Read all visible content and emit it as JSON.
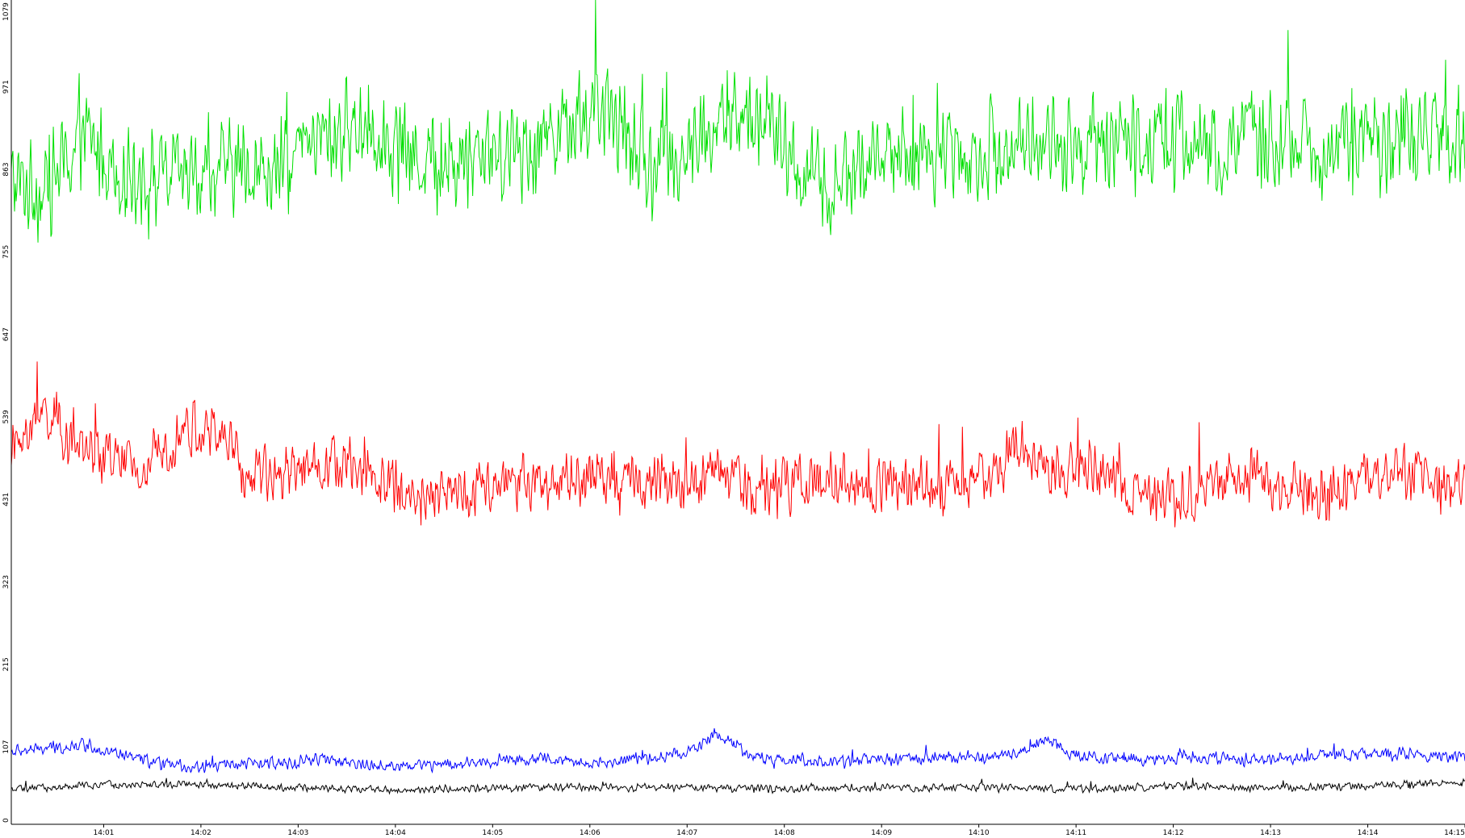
{
  "chart_data": {
    "type": "line",
    "title": "",
    "xlabel": "",
    "ylabel": "",
    "ylim": [
      0,
      1079
    ],
    "y_ticks": [
      "0",
      "107",
      "215",
      "323",
      "431",
      "539",
      "647",
      "755",
      "863",
      "971",
      "1079"
    ],
    "x_ticks": [
      "14:01",
      "14:02",
      "14:03",
      "14:04",
      "14:05",
      "14:06",
      "14:07",
      "14:08",
      "14:09",
      "14:10",
      "14:11",
      "14:12",
      "14:13",
      "14:14",
      "14:15"
    ],
    "x_start_minutes": 840.05,
    "x_end_minutes": 855.0,
    "grid": false,
    "legend": "none",
    "series": [
      {
        "color": "#00e000",
        "baseline": [
          [
            840.05,
            840
          ],
          [
            840.4,
            830
          ],
          [
            840.8,
            900
          ],
          [
            841.2,
            855
          ],
          [
            841.6,
            845
          ],
          [
            842.0,
            850
          ],
          [
            842.4,
            860
          ],
          [
            842.8,
            850
          ],
          [
            843.0,
            880
          ],
          [
            843.3,
            900
          ],
          [
            843.7,
            920
          ],
          [
            844.1,
            880
          ],
          [
            844.5,
            860
          ],
          [
            844.9,
            885
          ],
          [
            845.3,
            880
          ],
          [
            845.6,
            910
          ],
          [
            845.9,
            930
          ],
          [
            846.3,
            920
          ],
          [
            846.6,
            860
          ],
          [
            847.0,
            880
          ],
          [
            847.4,
            920
          ],
          [
            847.8,
            925
          ],
          [
            848.1,
            860
          ],
          [
            848.5,
            830
          ],
          [
            848.9,
            870
          ],
          [
            849.3,
            875
          ],
          [
            849.7,
            880
          ],
          [
            850.0,
            880
          ],
          [
            850.4,
            895
          ],
          [
            850.8,
            890
          ],
          [
            851.2,
            890
          ],
          [
            851.6,
            895
          ],
          [
            852.0,
            900
          ],
          [
            852.4,
            880
          ],
          [
            852.8,
            895
          ],
          [
            853.2,
            895
          ],
          [
            853.6,
            880
          ],
          [
            854.0,
            890
          ],
          [
            854.4,
            900
          ],
          [
            854.7,
            905
          ],
          [
            855.0,
            880
          ]
        ],
        "amplitude": 75
      },
      {
        "color": "#ff0000",
        "baseline": [
          [
            840.05,
            490
          ],
          [
            840.4,
            540
          ],
          [
            840.7,
            500
          ],
          [
            841.0,
            480
          ],
          [
            841.4,
            460
          ],
          [
            841.8,
            520
          ],
          [
            842.2,
            510
          ],
          [
            842.5,
            450
          ],
          [
            842.9,
            470
          ],
          [
            843.3,
            475
          ],
          [
            843.7,
            460
          ],
          [
            844.1,
            435
          ],
          [
            844.5,
            430
          ],
          [
            844.9,
            440
          ],
          [
            845.3,
            445
          ],
          [
            845.7,
            450
          ],
          [
            846.1,
            450
          ],
          [
            846.5,
            450
          ],
          [
            846.9,
            450
          ],
          [
            847.3,
            460
          ],
          [
            847.7,
            440
          ],
          [
            848.1,
            445
          ],
          [
            848.5,
            450
          ],
          [
            848.9,
            440
          ],
          [
            849.3,
            450
          ],
          [
            849.7,
            440
          ],
          [
            850.0,
            450
          ],
          [
            850.4,
            490
          ],
          [
            850.8,
            460
          ],
          [
            851.2,
            460
          ],
          [
            851.6,
            440
          ],
          [
            852.0,
            430
          ],
          [
            852.4,
            440
          ],
          [
            852.8,
            455
          ],
          [
            853.2,
            440
          ],
          [
            853.6,
            440
          ],
          [
            854.0,
            455
          ],
          [
            854.4,
            460
          ],
          [
            854.7,
            440
          ],
          [
            855.0,
            440
          ]
        ],
        "amplitude": 45
      },
      {
        "color": "#0000ff",
        "baseline": [
          [
            840.05,
            95
          ],
          [
            840.5,
            100
          ],
          [
            840.8,
            105
          ],
          [
            841.2,
            90
          ],
          [
            841.6,
            78
          ],
          [
            842.0,
            75
          ],
          [
            842.4,
            80
          ],
          [
            842.8,
            80
          ],
          [
            843.2,
            85
          ],
          [
            843.6,
            80
          ],
          [
            844.0,
            75
          ],
          [
            844.4,
            78
          ],
          [
            844.8,
            80
          ],
          [
            845.2,
            85
          ],
          [
            845.6,
            85
          ],
          [
            846.0,
            80
          ],
          [
            846.4,
            85
          ],
          [
            846.8,
            90
          ],
          [
            847.1,
            100
          ],
          [
            847.3,
            120
          ],
          [
            847.5,
            100
          ],
          [
            847.8,
            85
          ],
          [
            848.2,
            85
          ],
          [
            848.5,
            80
          ],
          [
            848.9,
            85
          ],
          [
            849.2,
            85
          ],
          [
            849.6,
            88
          ],
          [
            850.0,
            88
          ],
          [
            850.4,
            95
          ],
          [
            850.7,
            110
          ],
          [
            851.0,
            90
          ],
          [
            851.4,
            85
          ],
          [
            851.8,
            85
          ],
          [
            852.2,
            88
          ],
          [
            852.6,
            85
          ],
          [
            853.0,
            85
          ],
          [
            853.4,
            88
          ],
          [
            853.8,
            90
          ],
          [
            854.2,
            92
          ],
          [
            854.6,
            90
          ],
          [
            855.0,
            88
          ]
        ],
        "amplitude": 10
      },
      {
        "color": "#000000",
        "baseline": [
          [
            840.05,
            45
          ],
          [
            841.0,
            52
          ],
          [
            842.0,
            52
          ],
          [
            843.0,
            48
          ],
          [
            844.0,
            45
          ],
          [
            845.0,
            48
          ],
          [
            846.0,
            48
          ],
          [
            847.0,
            48
          ],
          [
            848.0,
            46
          ],
          [
            849.0,
            48
          ],
          [
            850.0,
            48
          ],
          [
            851.0,
            46
          ],
          [
            852.0,
            50
          ],
          [
            853.0,
            48
          ],
          [
            854.0,
            50
          ],
          [
            855.0,
            55
          ]
        ],
        "amplitude": 6
      }
    ]
  }
}
